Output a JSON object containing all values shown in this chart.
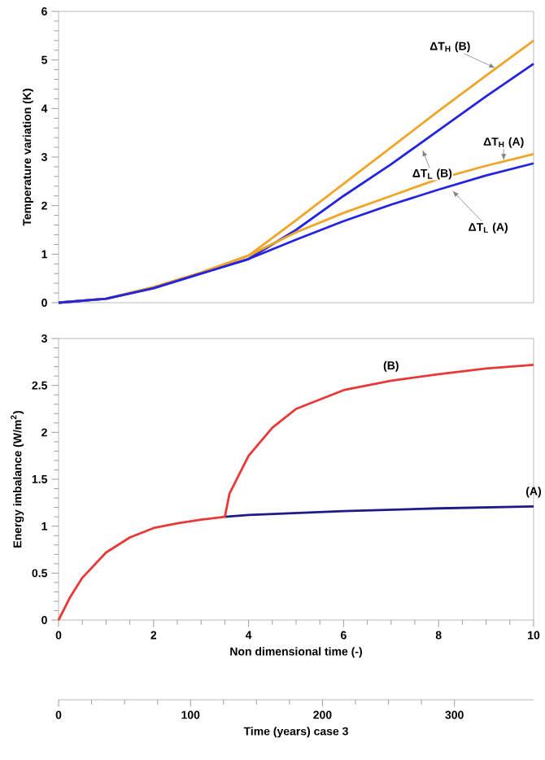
{
  "chart_data": [
    {
      "type": "line",
      "ylabel": "Temperature variation (K)",
      "xlim": [
        0,
        10
      ],
      "ylim": [
        0,
        6
      ],
      "yticks": [
        0,
        1,
        2,
        3,
        4,
        5,
        6
      ],
      "tick_labels": "y",
      "x": [
        0,
        1,
        2,
        3,
        4,
        5,
        6,
        7,
        8,
        9,
        10
      ],
      "series": [
        {
          "color": "#f0a428",
          "values": [
            0,
            0.08,
            0.32,
            0.62,
            0.97,
            1.7,
            2.45,
            3.2,
            3.95,
            4.68,
            5.4
          ]
        },
        {
          "color": "#2424e0",
          "values": [
            0,
            0.08,
            0.3,
            0.6,
            0.9,
            1.5,
            2.2,
            2.85,
            3.55,
            4.25,
            4.92
          ]
        },
        {
          "color": "#f0a428",
          "values": [
            0,
            0.08,
            0.32,
            0.62,
            0.97,
            1.45,
            1.85,
            2.2,
            2.55,
            2.82,
            3.06
          ]
        },
        {
          "color": "#2424e0",
          "values": [
            0,
            0.08,
            0.3,
            0.6,
            0.9,
            1.3,
            1.68,
            2.02,
            2.33,
            2.62,
            2.87
          ]
        }
      ],
      "annotations": [
        {
          "text": "ΔT$_{H}$ (B)",
          "x": 9.2,
          "y": 4.83
        },
        {
          "text": "ΔT$_{H}$ (A)",
          "x": 9.37,
          "y": 2.93
        },
        {
          "text": "ΔT$_{L}$ (B)",
          "x": 7.66,
          "y": 3.15
        },
        {
          "text": "ΔT$_{L}$ (A)",
          "x": 8.29,
          "y": 2.31
        }
      ]
    },
    {
      "type": "line",
      "xlabel": "Non dimensional time (-)",
      "ylabel": "Energy imbalance (W/m$^{2}$)",
      "xlim": [
        0,
        10
      ],
      "ylim": [
        0,
        3
      ],
      "xticks": [
        0,
        2,
        4,
        6,
        8,
        10
      ],
      "yticks": [
        0,
        {
          "value": 0.5,
          "label": "0.5"
        },
        1,
        {
          "value": 1.5,
          "label": "1.5"
        },
        2,
        {
          "value": 2.5,
          "label": "2.5"
        },
        3
      ],
      "x2lim": [
        0,
        360
      ],
      "x2ticks": [
        0,
        100,
        200,
        300
      ],
      "x2label": "Time (years) case 3",
      "series": [
        {
          "name": "(A)",
          "color": "#1c1c88",
          "x": [
            3.5,
            4,
            6,
            8,
            10
          ],
          "values": [
            1.1,
            1.12,
            1.16,
            1.19,
            1.21
          ]
        },
        {
          "name": "(B)",
          "color": "#e83838",
          "x": [
            0,
            0.25,
            0.5,
            1,
            1.5,
            2,
            2.5,
            3,
            3.5,
            3.6,
            4,
            4.5,
            5,
            6,
            7,
            8,
            9,
            10
          ],
          "values": [
            0,
            0.25,
            0.45,
            0.72,
            0.88,
            0.98,
            1.03,
            1.07,
            1.1,
            1.35,
            1.75,
            2.05,
            2.25,
            2.45,
            2.55,
            2.62,
            2.68,
            2.72
          ]
        }
      ]
    }
  ]
}
